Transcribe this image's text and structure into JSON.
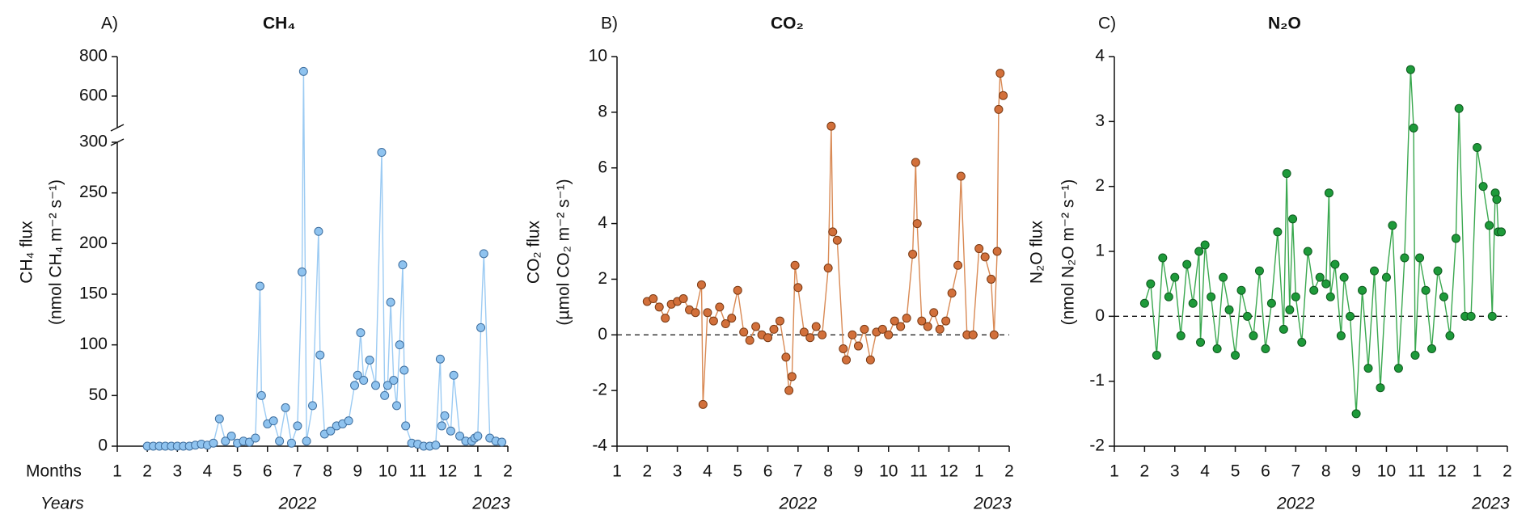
{
  "chart_data": [
    {
      "type": "line",
      "label": "A)",
      "title": "CH₄",
      "title_color": "#7ab8ee",
      "ylabel": [
        "CH₄ flux",
        "(nmol CH₄ m⁻² s⁻¹)"
      ],
      "xlabel": "Months",
      "x2label": "Years",
      "years": [
        "2022",
        "2023"
      ],
      "color": "#9ccbf3",
      "marker_color": "#8fc3ef",
      "marker_edge": "#3f6f9f",
      "xlim": [
        1,
        14
      ],
      "xticks": [
        1,
        2,
        3,
        4,
        5,
        6,
        7,
        8,
        9,
        10,
        11,
        12,
        {
          "value": 13,
          "label": "1"
        },
        {
          "value": 14,
          "label": "2"
        }
      ],
      "ylim": [
        0,
        300
      ],
      "yticks": [
        0,
        50,
        100,
        150,
        200,
        250,
        300
      ],
      "axis_break": true,
      "ylim_upper": [
        440,
        800
      ],
      "yticks_upper": [
        600,
        800
      ],
      "zero_line": false,
      "x": [
        2.0,
        2.2,
        2.4,
        2.6,
        2.8,
        3.0,
        3.2,
        3.4,
        3.6,
        3.8,
        4.0,
        4.2,
        4.4,
        4.6,
        4.8,
        5.0,
        5.2,
        5.4,
        5.6,
        5.75,
        5.8,
        6.0,
        6.2,
        6.4,
        6.6,
        6.8,
        7.0,
        7.15,
        7.2,
        7.3,
        7.5,
        7.7,
        7.75,
        7.9,
        8.1,
        8.3,
        8.5,
        8.7,
        8.9,
        9.0,
        9.1,
        9.2,
        9.4,
        9.6,
        9.8,
        9.9,
        10.0,
        10.1,
        10.2,
        10.3,
        10.4,
        10.5,
        10.55,
        10.6,
        10.8,
        11.0,
        11.2,
        11.4,
        11.6,
        11.75,
        11.8,
        11.9,
        12.1,
        12.2,
        12.4,
        12.6,
        12.8,
        12.9,
        13.0,
        13.1,
        13.2,
        13.4,
        13.6,
        13.8
      ],
      "values": [
        0,
        0,
        0,
        0,
        0,
        0,
        0,
        0,
        1,
        2,
        1,
        3,
        27,
        5,
        10,
        3,
        5,
        4,
        8,
        158,
        50,
        22,
        25,
        5,
        38,
        3,
        20,
        172,
        725,
        5,
        40,
        212,
        90,
        12,
        15,
        20,
        22,
        25,
        60,
        70,
        112,
        65,
        85,
        60,
        290,
        50,
        60,
        142,
        65,
        40,
        100,
        179,
        75,
        20,
        3,
        2,
        0,
        0,
        1,
        86,
        20,
        30,
        15,
        70,
        10,
        5,
        5,
        8,
        10,
        117,
        190,
        8,
        5,
        4
      ]
    },
    {
      "type": "line",
      "label": "B)",
      "title": "CO₂",
      "title_color": "#cd6b2e",
      "ylabel": [
        "CO₂ flux",
        "(µmol CO₂ m⁻² s⁻¹)"
      ],
      "years": [
        "2022",
        "2023"
      ],
      "color": "#d98a55",
      "marker_color": "#d2703b",
      "marker_edge": "#7a3a14",
      "xlim": [
        1,
        14
      ],
      "xticks": [
        1,
        2,
        3,
        4,
        5,
        6,
        7,
        8,
        9,
        10,
        11,
        12,
        {
          "value": 13,
          "label": "1"
        },
        {
          "value": 14,
          "label": "2"
        }
      ],
      "ylim": [
        -4,
        10
      ],
      "yticks": [
        -4,
        -2,
        0,
        2,
        4,
        6,
        8,
        10
      ],
      "zero_line": true,
      "x": [
        2.0,
        2.2,
        2.4,
        2.6,
        2.8,
        3.0,
        3.2,
        3.4,
        3.6,
        3.8,
        3.85,
        4.0,
        4.2,
        4.4,
        4.6,
        4.8,
        5.0,
        5.2,
        5.4,
        5.6,
        5.8,
        6.0,
        6.2,
        6.4,
        6.6,
        6.7,
        6.8,
        6.9,
        7.0,
        7.2,
        7.4,
        7.6,
        7.8,
        8.0,
        8.1,
        8.15,
        8.3,
        8.5,
        8.6,
        8.8,
        9.0,
        9.2,
        9.4,
        9.6,
        9.8,
        10.0,
        10.2,
        10.4,
        10.6,
        10.8,
        10.9,
        10.95,
        11.1,
        11.3,
        11.5,
        11.7,
        11.9,
        12.1,
        12.3,
        12.4,
        12.6,
        12.8,
        13.0,
        13.2,
        13.4,
        13.5,
        13.6,
        13.65,
        13.7,
        13.8
      ],
      "values": [
        1.2,
        1.3,
        1.0,
        0.6,
        1.1,
        1.2,
        1.3,
        0.9,
        0.8,
        1.8,
        -2.5,
        0.8,
        0.5,
        1.0,
        0.4,
        0.6,
        1.6,
        0.1,
        -0.2,
        0.3,
        0.0,
        -0.1,
        0.2,
        0.5,
        -0.8,
        -2.0,
        -1.5,
        2.5,
        1.7,
        0.1,
        -0.1,
        0.3,
        0.0,
        2.4,
        7.5,
        3.7,
        3.4,
        -0.5,
        -0.9,
        0.0,
        -0.4,
        0.2,
        -0.9,
        0.1,
        0.2,
        0.0,
        0.5,
        0.3,
        0.6,
        2.9,
        6.2,
        4.0,
        0.5,
        0.3,
        0.8,
        0.2,
        0.5,
        1.5,
        2.5,
        5.7,
        0.0,
        0.0,
        3.1,
        2.8,
        2.0,
        0.0,
        3.0,
        8.1,
        9.4,
        8.6
      ]
    },
    {
      "type": "line",
      "label": "C)",
      "title": "N₂O",
      "title_color": "#22a03a",
      "ylabel": [
        "N₂O flux",
        "(nmol N₂O m⁻² s⁻¹)"
      ],
      "years": [
        "2022",
        "2023"
      ],
      "color": "#3aa84f",
      "marker_color": "#1e9a3a",
      "marker_edge": "#0d5a1e",
      "xlim": [
        1,
        14
      ],
      "xticks": [
        1,
        2,
        3,
        4,
        5,
        6,
        7,
        8,
        9,
        10,
        11,
        12,
        {
          "value": 13,
          "label": "1"
        },
        {
          "value": 14,
          "label": "2"
        }
      ],
      "ylim": [
        -2,
        4
      ],
      "yticks": [
        -2,
        -1,
        0,
        1,
        2,
        3,
        4
      ],
      "zero_line": true,
      "x": [
        2.0,
        2.2,
        2.4,
        2.6,
        2.8,
        3.0,
        3.2,
        3.4,
        3.6,
        3.8,
        3.85,
        4.0,
        4.2,
        4.4,
        4.6,
        4.8,
        5.0,
        5.2,
        5.4,
        5.6,
        5.8,
        6.0,
        6.2,
        6.4,
        6.6,
        6.7,
        6.8,
        6.9,
        7.0,
        7.2,
        7.4,
        7.6,
        7.8,
        8.0,
        8.1,
        8.15,
        8.3,
        8.5,
        8.6,
        8.8,
        9.0,
        9.2,
        9.4,
        9.6,
        9.8,
        10.0,
        10.2,
        10.4,
        10.6,
        10.8,
        10.9,
        10.95,
        11.1,
        11.3,
        11.5,
        11.7,
        11.9,
        12.1,
        12.3,
        12.4,
        12.6,
        12.8,
        13.0,
        13.2,
        13.4,
        13.5,
        13.6,
        13.65,
        13.7,
        13.8
      ],
      "values": [
        0.2,
        0.5,
        -0.6,
        0.9,
        0.3,
        0.6,
        -0.3,
        0.8,
        0.2,
        1.0,
        -0.4,
        1.1,
        0.3,
        -0.5,
        0.6,
        0.1,
        -0.6,
        0.4,
        0.0,
        -0.3,
        0.7,
        -0.5,
        0.2,
        1.3,
        -0.2,
        2.2,
        0.1,
        1.5,
        0.3,
        -0.4,
        1.0,
        0.4,
        0.6,
        0.5,
        1.9,
        0.3,
        0.8,
        -0.3,
        0.6,
        0.0,
        -1.5,
        0.4,
        -0.8,
        0.7,
        -1.1,
        0.6,
        1.4,
        -0.8,
        0.9,
        3.8,
        2.9,
        -0.6,
        0.9,
        0.4,
        -0.5,
        0.7,
        0.3,
        -0.3,
        1.2,
        3.2,
        0.0,
        0.0,
        2.6,
        2.0,
        1.4,
        0.0,
        1.9,
        1.8,
        1.3,
        1.3
      ]
    }
  ]
}
